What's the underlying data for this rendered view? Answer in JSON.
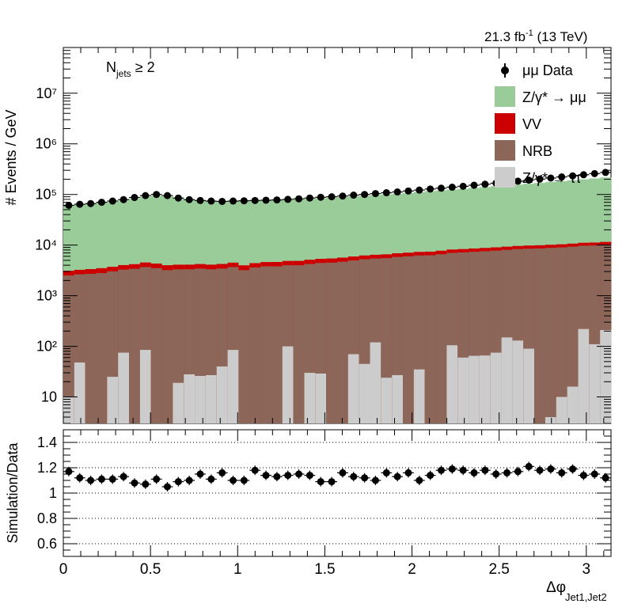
{
  "header": {
    "lumi": "21.3 fb",
    "lumi_sup": "-1",
    "energy": " (13 TeV)",
    "njets_main": "N",
    "njets_sub": "jets",
    "njets_rest": " ≥ 2"
  },
  "legend": {
    "data": "μμ Data",
    "zmm": "Z/γ* → μμ",
    "vv": "VV",
    "nrb": "NRB",
    "ztt": "Z/γ* → ττ"
  },
  "colors": {
    "zmm": "#99cc99",
    "vv": "#cc0000",
    "nrb": "#8c6658",
    "ztt": "#cccccc",
    "data": "#000000"
  },
  "chart_data": [
    {
      "type": "bar",
      "title": "",
      "xlabel": "Δφ Jet1,Jet2",
      "ylabel": "# Events / GeV",
      "yscale": "log",
      "ylim": [
        3,
        80000000
      ],
      "xlim": [
        0,
        3.1416
      ],
      "stacked": true,
      "bins": 50,
      "x_ticks": [
        "0",
        "0.5",
        "1",
        "1.5",
        "2",
        "2.5",
        "3"
      ],
      "y_ticks": [
        "10",
        "10²",
        "10³",
        "10⁴",
        "10⁵",
        "10⁶",
        "10⁷"
      ],
      "series": [
        {
          "name": "Z/γ* → ττ",
          "values": [
            10,
            48,
            3,
            0,
            25,
            75,
            0,
            85,
            0,
            0,
            19,
            28,
            26,
            27,
            40,
            85,
            0,
            0,
            0,
            0,
            100,
            0,
            30,
            29,
            0,
            0,
            70,
            45,
            120,
            24,
            27,
            0,
            35,
            0,
            0,
            105,
            60,
            65,
            66,
            75,
            150,
            130,
            90,
            0,
            4,
            10,
            16,
            220,
            110,
            210
          ]
        },
        {
          "name": "NRB",
          "values": [
            2500,
            2600,
            2700,
            2800,
            3000,
            3200,
            3400,
            3600,
            3500,
            3200,
            3300,
            3300,
            3400,
            3300,
            3400,
            3600,
            3200,
            3600,
            3800,
            3800,
            3900,
            4000,
            4200,
            4400,
            4500,
            4700,
            4900,
            5200,
            5300,
            5500,
            5800,
            6000,
            6200,
            6300,
            6600,
            6900,
            7100,
            7300,
            7500,
            7700,
            7900,
            8200,
            8400,
            8600,
            8800,
            9000,
            9300,
            9500,
            9700,
            9900
          ]
        },
        {
          "name": "VV",
          "values": [
            600,
            600,
            650,
            700,
            700,
            750,
            800,
            850,
            820,
            800,
            780,
            780,
            800,
            780,
            800,
            820,
            780,
            800,
            820,
            840,
            860,
            880,
            900,
            920,
            940,
            960,
            980,
            1000,
            1020,
            1040,
            1060,
            1080,
            1100,
            1120,
            1140,
            1160,
            1180,
            1200,
            1220,
            1240,
            1260,
            1280,
            1300,
            1320,
            1340,
            1360,
            1380,
            1400,
            1420,
            1440
          ]
        },
        {
          "name": "Z/γ* → μμ",
          "values": [
            57000,
            60000,
            62000,
            65000,
            68000,
            72000,
            78000,
            86000,
            90000,
            88000,
            80000,
            75000,
            72000,
            70000,
            69000,
            70000,
            71000,
            72000,
            72000,
            73000,
            74000,
            75000,
            77000,
            79000,
            81000,
            83000,
            86000,
            88000,
            91000,
            94000,
            97000,
            101000,
            105000,
            109000,
            113000,
            117000,
            121000,
            126000,
            131000,
            136000,
            141000,
            147000,
            153000,
            159000,
            166000,
            173000,
            180000,
            188000,
            196000,
            205000
          ]
        },
        {
          "name": "μμ Data",
          "values": [
            61000,
            64000,
            66000,
            70000,
            74000,
            79000,
            87000,
            95000,
            100000,
            95000,
            85000,
            79000,
            76000,
            74000,
            73000,
            74000,
            75000,
            76000,
            77000,
            78000,
            80000,
            82000,
            85000,
            88000,
            90000,
            93000,
            97000,
            100000,
            104000,
            108000,
            112000,
            117000,
            122000,
            128000,
            133000,
            139000,
            145000,
            152000,
            159000,
            167000,
            175000,
            183000,
            192000,
            201000,
            211000,
            222000,
            233000,
            245000,
            258000,
            272000
          ]
        }
      ]
    },
    {
      "type": "scatter",
      "xlabel": "Δφ Jet1,Jet2",
      "ylabel": "Simulation/Data",
      "ylim": [
        0.5,
        1.5
      ],
      "y_ticks": [
        "0.6",
        "0.8",
        "1",
        "1.2",
        "1.4"
      ],
      "grid": "dotted horizontal",
      "series": [
        {
          "name": "ratio",
          "values": [
            1.17,
            1.12,
            1.1,
            1.11,
            1.11,
            1.13,
            1.08,
            1.07,
            1.11,
            1.05,
            1.09,
            1.1,
            1.15,
            1.11,
            1.16,
            1.1,
            1.1,
            1.18,
            1.14,
            1.13,
            1.14,
            1.15,
            1.14,
            1.09,
            1.09,
            1.16,
            1.13,
            1.12,
            1.1,
            1.16,
            1.13,
            1.16,
            1.1,
            1.14,
            1.18,
            1.19,
            1.18,
            1.16,
            1.18,
            1.15,
            1.16,
            1.17,
            1.21,
            1.18,
            1.19,
            1.16,
            1.19,
            1.14,
            1.15,
            1.12
          ]
        }
      ]
    }
  ]
}
